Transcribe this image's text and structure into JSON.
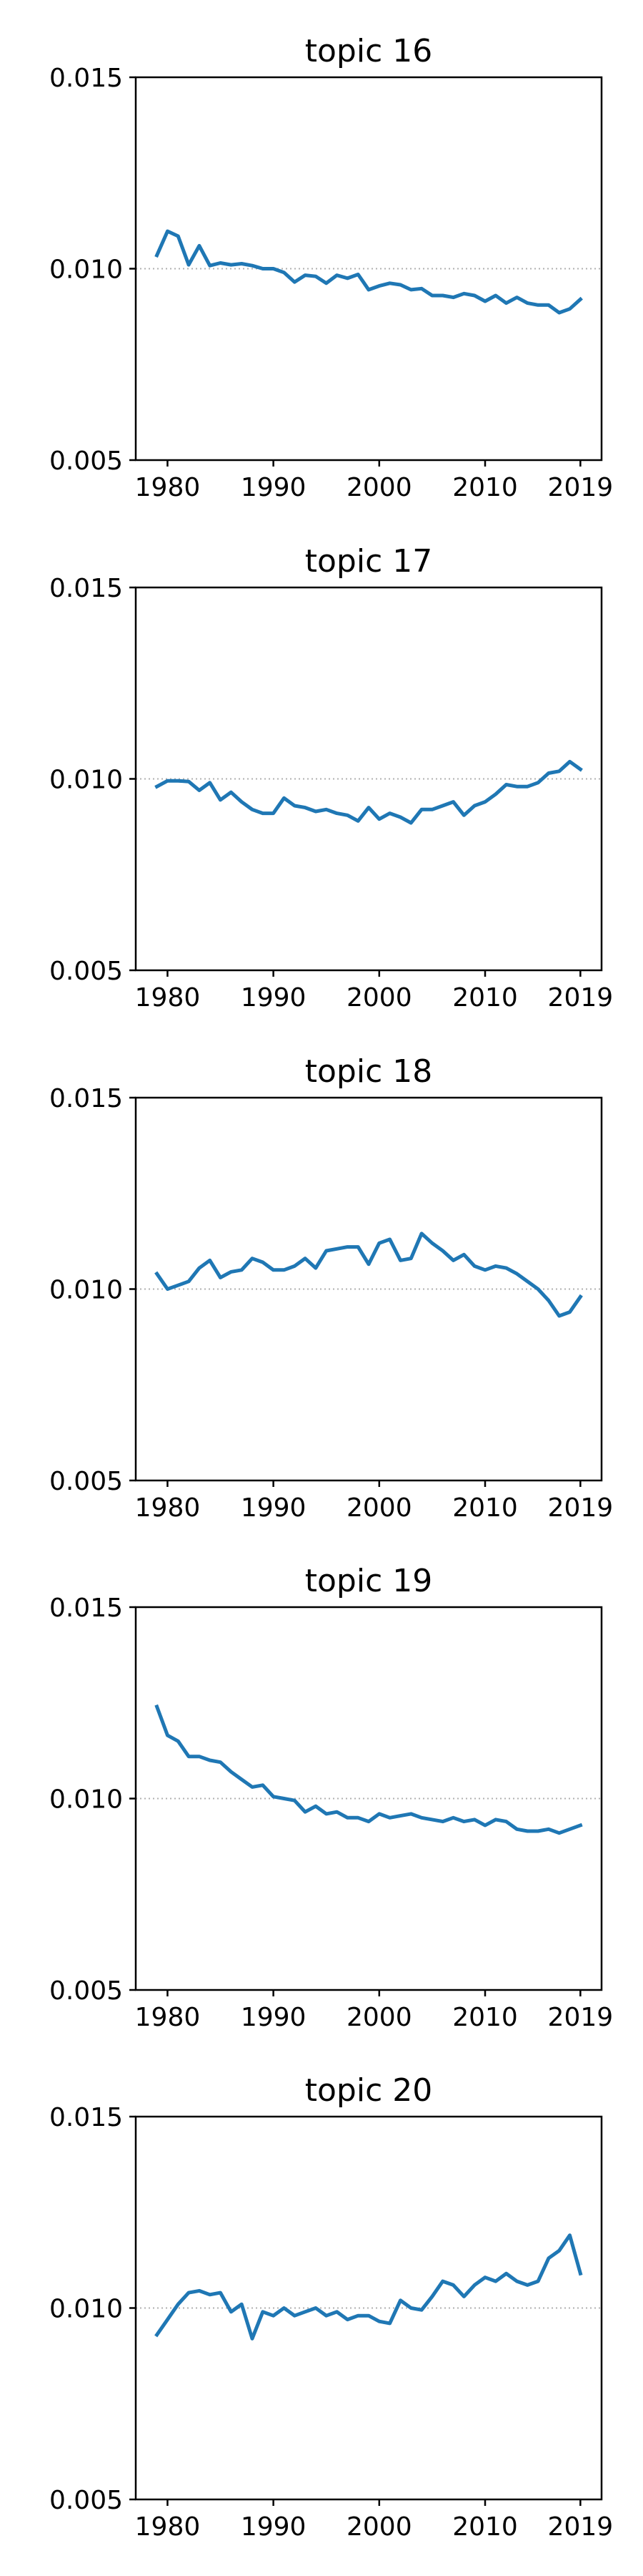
{
  "chart_data": [
    {
      "type": "line",
      "title": "topic 16",
      "ylim": [
        0.005,
        0.015
      ],
      "yticks": [
        "0.005",
        "0.010",
        "0.015"
      ],
      "xticks": [
        "1980",
        "1990",
        "2000",
        "2010",
        "2019"
      ],
      "xlim": [
        1977,
        2021
      ],
      "reference_line": 0.01,
      "color": "#1f77b4",
      "x": [
        1979,
        1980,
        1981,
        1982,
        1983,
        1984,
        1985,
        1986,
        1987,
        1988,
        1989,
        1990,
        1991,
        1992,
        1993,
        1994,
        1995,
        1996,
        1997,
        1998,
        1999,
        2000,
        2001,
        2002,
        2003,
        2004,
        2005,
        2006,
        2007,
        2008,
        2009,
        2010,
        2011,
        2012,
        2013,
        2014,
        2015,
        2016,
        2017,
        2018,
        2019
      ],
      "values": [
        0.01035,
        0.01098,
        0.01085,
        0.0101,
        0.0106,
        0.01008,
        0.01015,
        0.0101,
        0.01013,
        0.01008,
        0.01,
        0.01,
        0.0099,
        0.00965,
        0.00983,
        0.0098,
        0.00962,
        0.00983,
        0.00975,
        0.00985,
        0.00945,
        0.00955,
        0.00962,
        0.00958,
        0.00945,
        0.00948,
        0.0093,
        0.0093,
        0.00925,
        0.00935,
        0.0093,
        0.00915,
        0.0093,
        0.0091,
        0.00925,
        0.0091,
        0.00905,
        0.00905,
        0.00885,
        0.00895,
        0.0092
      ]
    },
    {
      "type": "line",
      "title": "topic 17",
      "ylim": [
        0.005,
        0.015
      ],
      "yticks": [
        "0.005",
        "0.010",
        "0.015"
      ],
      "xticks": [
        "1980",
        "1990",
        "2000",
        "2010",
        "2019"
      ],
      "xlim": [
        1977,
        2021
      ],
      "reference_line": 0.01,
      "color": "#1f77b4",
      "x": [
        1979,
        1980,
        1981,
        1982,
        1983,
        1984,
        1985,
        1986,
        1987,
        1988,
        1989,
        1990,
        1991,
        1992,
        1993,
        1994,
        1995,
        1996,
        1997,
        1998,
        1999,
        2000,
        2001,
        2002,
        2003,
        2004,
        2005,
        2006,
        2007,
        2008,
        2009,
        2010,
        2011,
        2012,
        2013,
        2014,
        2015,
        2016,
        2017,
        2018,
        2019
      ],
      "values": [
        0.0098,
        0.00995,
        0.00995,
        0.00993,
        0.0097,
        0.0099,
        0.00945,
        0.00965,
        0.0094,
        0.0092,
        0.0091,
        0.0091,
        0.0095,
        0.0093,
        0.00925,
        0.00915,
        0.0092,
        0.0091,
        0.00905,
        0.0089,
        0.00925,
        0.00895,
        0.0091,
        0.009,
        0.00885,
        0.0092,
        0.0092,
        0.0093,
        0.0094,
        0.00905,
        0.0093,
        0.0094,
        0.0096,
        0.00985,
        0.0098,
        0.0098,
        0.0099,
        0.01015,
        0.0102,
        0.01045,
        0.01025
      ]
    },
    {
      "type": "line",
      "title": "topic 18",
      "ylim": [
        0.005,
        0.015
      ],
      "yticks": [
        "0.005",
        "0.010",
        "0.015"
      ],
      "xticks": [
        "1980",
        "1990",
        "2000",
        "2010",
        "2019"
      ],
      "xlim": [
        1977,
        2021
      ],
      "reference_line": 0.01,
      "color": "#1f77b4",
      "x": [
        1979,
        1980,
        1981,
        1982,
        1983,
        1984,
        1985,
        1986,
        1987,
        1988,
        1989,
        1990,
        1991,
        1992,
        1993,
        1994,
        1995,
        1996,
        1997,
        1998,
        1999,
        2000,
        2001,
        2002,
        2003,
        2004,
        2005,
        2006,
        2007,
        2008,
        2009,
        2010,
        2011,
        2012,
        2013,
        2014,
        2015,
        2016,
        2017,
        2018,
        2019
      ],
      "values": [
        0.0104,
        0.01,
        0.0101,
        0.0102,
        0.01055,
        0.01075,
        0.0103,
        0.01045,
        0.0105,
        0.0108,
        0.0107,
        0.0105,
        0.0105,
        0.0106,
        0.0108,
        0.01055,
        0.011,
        0.01105,
        0.0111,
        0.0111,
        0.01065,
        0.0112,
        0.0113,
        0.01075,
        0.0108,
        0.01145,
        0.0112,
        0.011,
        0.01075,
        0.0109,
        0.0106,
        0.0105,
        0.0106,
        0.01055,
        0.0104,
        0.0102,
        0.01,
        0.0097,
        0.0093,
        0.0094,
        0.0098
      ]
    },
    {
      "type": "line",
      "title": "topic 19",
      "ylim": [
        0.005,
        0.015
      ],
      "yticks": [
        "0.005",
        "0.010",
        "0.015"
      ],
      "xticks": [
        "1980",
        "1990",
        "2000",
        "2010",
        "2019"
      ],
      "xlim": [
        1977,
        2021
      ],
      "reference_line": 0.01,
      "color": "#1f77b4",
      "x": [
        1979,
        1980,
        1981,
        1982,
        1983,
        1984,
        1985,
        1986,
        1987,
        1988,
        1989,
        1990,
        1991,
        1992,
        1993,
        1994,
        1995,
        1996,
        1997,
        1998,
        1999,
        2000,
        2001,
        2002,
        2003,
        2004,
        2005,
        2006,
        2007,
        2008,
        2009,
        2010,
        2011,
        2012,
        2013,
        2014,
        2015,
        2016,
        2017,
        2018,
        2019
      ],
      "values": [
        0.0124,
        0.01165,
        0.0115,
        0.0111,
        0.0111,
        0.011,
        0.01095,
        0.0107,
        0.0105,
        0.0103,
        0.01035,
        0.01005,
        0.01,
        0.00995,
        0.00965,
        0.0098,
        0.0096,
        0.00965,
        0.0095,
        0.0095,
        0.0094,
        0.0096,
        0.0095,
        0.00955,
        0.0096,
        0.0095,
        0.00945,
        0.0094,
        0.0095,
        0.0094,
        0.00945,
        0.0093,
        0.00945,
        0.0094,
        0.0092,
        0.00915,
        0.00915,
        0.0092,
        0.0091,
        0.0092,
        0.0093
      ]
    },
    {
      "type": "line",
      "title": "topic 20",
      "ylim": [
        0.005,
        0.015
      ],
      "yticks": [
        "0.005",
        "0.010",
        "0.015"
      ],
      "xticks": [
        "1980",
        "1990",
        "2000",
        "2010",
        "2019"
      ],
      "xlim": [
        1977,
        2021
      ],
      "reference_line": 0.01,
      "color": "#1f77b4",
      "x": [
        1979,
        1980,
        1981,
        1982,
        1983,
        1984,
        1985,
        1986,
        1987,
        1988,
        1989,
        1990,
        1991,
        1992,
        1993,
        1994,
        1995,
        1996,
        1997,
        1998,
        1999,
        2000,
        2001,
        2002,
        2003,
        2004,
        2005,
        2006,
        2007,
        2008,
        2009,
        2010,
        2011,
        2012,
        2013,
        2014,
        2015,
        2016,
        2017,
        2018,
        2019
      ],
      "values": [
        0.0093,
        0.0097,
        0.0101,
        0.0104,
        0.01045,
        0.01035,
        0.0104,
        0.0099,
        0.0101,
        0.0092,
        0.0099,
        0.0098,
        0.01,
        0.0098,
        0.0099,
        0.01,
        0.0098,
        0.0099,
        0.0097,
        0.0098,
        0.0098,
        0.00965,
        0.0096,
        0.0102,
        0.01,
        0.00995,
        0.0103,
        0.0107,
        0.0106,
        0.0103,
        0.0106,
        0.0108,
        0.0107,
        0.0109,
        0.0107,
        0.0106,
        0.0107,
        0.0113,
        0.0115,
        0.0119,
        0.0109
      ]
    }
  ]
}
